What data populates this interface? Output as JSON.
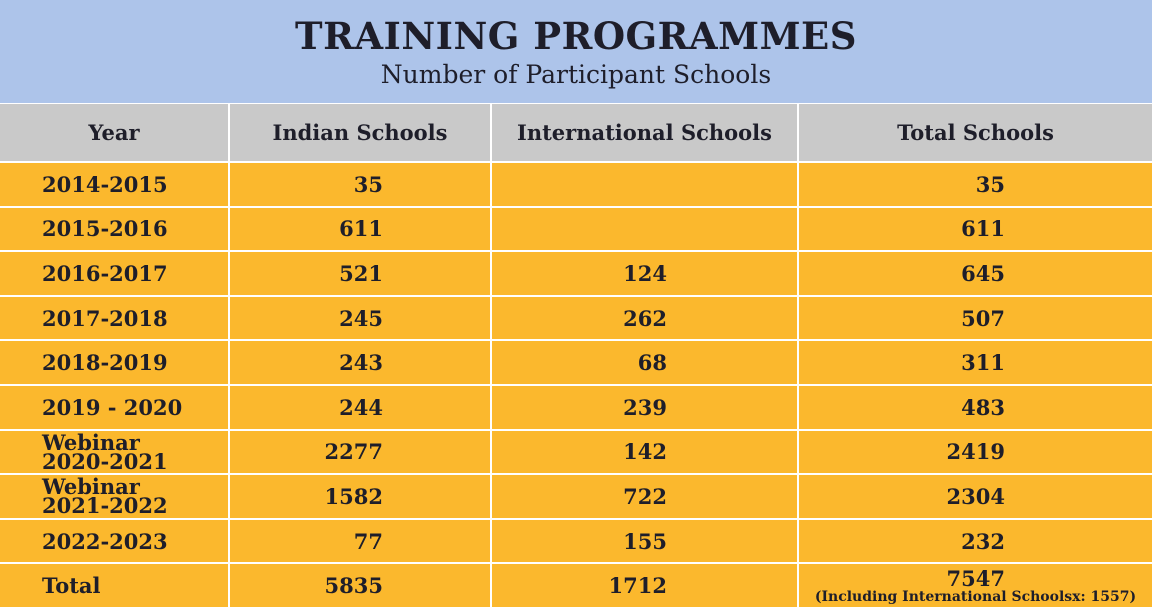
{
  "header": {
    "title": "TRAINING PROGRAMMES",
    "subtitle": "Number of Participant Schools"
  },
  "table": {
    "columns": [
      "Year",
      "Indian Schools",
      "International Schools",
      "Total Schools"
    ],
    "rows": [
      [
        "2014-2015",
        35,
        null,
        35
      ],
      [
        "2015-2016",
        611,
        null,
        611
      ],
      [
        "2016-2017",
        521,
        124,
        645
      ],
      [
        "2017-2018",
        245,
        262,
        507
      ],
      [
        "2018-2019",
        243,
        68,
        311
      ],
      [
        "2019 - 2020",
        244,
        239,
        483
      ],
      [
        "Webinar\n2020-2021",
        2277,
        142,
        2419
      ],
      [
        "Webinar\n2021-2022",
        1582,
        722,
        2304
      ],
      [
        "2022-2023",
        77,
        155,
        232
      ]
    ],
    "total": {
      "label": "Total",
      "indian": 5835,
      "international": 1712,
      "total": 7547,
      "note": "(Including International Schoolsx: 1557)"
    }
  }
}
